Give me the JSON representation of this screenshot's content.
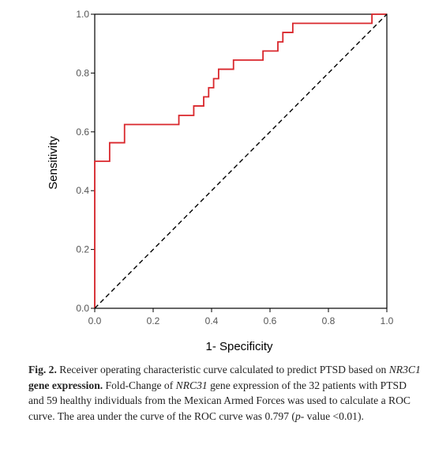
{
  "chart_data": {
    "type": "line",
    "title": "",
    "xlabel": "1- Specificity",
    "ylabel": "Sensitivity",
    "xlim": [
      0,
      1
    ],
    "ylim": [
      0,
      1
    ],
    "xticks": [
      "0.0",
      "0.2",
      "0.4",
      "0.6",
      "0.8",
      "1.0"
    ],
    "yticks": [
      "0.0",
      "0.2",
      "0.4",
      "0.6",
      "0.8",
      "1.0"
    ],
    "grid": false,
    "series": [
      {
        "name": "",
        "style": "solid-step",
        "color": "#d9262b",
        "x": [
          0.0,
          0.0,
          0.051,
          0.051,
          0.102,
          0.102,
          0.288,
          0.288,
          0.339,
          0.339,
          0.373,
          0.373,
          0.39,
          0.39,
          0.407,
          0.407,
          0.424,
          0.424,
          0.475,
          0.475,
          0.576,
          0.576,
          0.627,
          0.627,
          0.644,
          0.644,
          0.678,
          0.678,
          0.949,
          0.949,
          1.0
        ],
        "y": [
          0.0,
          0.5,
          0.5,
          0.563,
          0.563,
          0.625,
          0.625,
          0.656,
          0.656,
          0.688,
          0.688,
          0.719,
          0.719,
          0.75,
          0.75,
          0.781,
          0.781,
          0.813,
          0.813,
          0.844,
          0.844,
          0.875,
          0.875,
          0.906,
          0.906,
          0.938,
          0.938,
          0.969,
          0.969,
          1.0,
          1.0
        ]
      },
      {
        "name": "",
        "style": "dashed-reference",
        "color": "#000000",
        "x": [
          0,
          1
        ],
        "y": [
          0,
          1
        ]
      }
    ]
  },
  "caption": {
    "fig_label": "Fig. 2.",
    "lead_text": " Receiver operating characteristic curve calculated to predict PTSD based on ",
    "gene1": "NR3C1",
    "bold_rest": " gene expression.",
    "text2": " Fold-Change of ",
    "gene2": "NRC31",
    "text3": " gene expression of the 32 patients with PTSD and 59 healthy individuals from the Mexican Armed Forces was used to calculate a ROC curve. The area under the curve of the ROC curve was 0.797 (",
    "p_symbol": "p",
    "text4": "- value <0.01)."
  }
}
